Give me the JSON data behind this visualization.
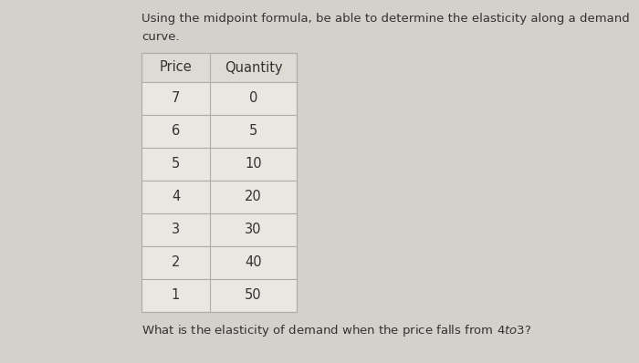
{
  "title_line1": "Using the midpoint formula, be able to determine the elasticity along a demand",
  "title_line2": "curve.",
  "col_headers": [
    "Price",
    "Quantity"
  ],
  "table_data": [
    [
      7,
      0
    ],
    [
      6,
      5
    ],
    [
      5,
      10
    ],
    [
      4,
      20
    ],
    [
      3,
      30
    ],
    [
      2,
      40
    ],
    [
      1,
      50
    ]
  ],
  "question": "What is the elasticity of demand when the price falls from $4 to $3?",
  "background_color": "#d4d0cb",
  "header_bg": "#dedad4",
  "cell_bg": "#eae7e2",
  "border_color": "#b0ada8",
  "text_color": "#333333",
  "title_fontsize": 9.5,
  "table_fontsize": 10.5,
  "question_fontsize": 9.5
}
